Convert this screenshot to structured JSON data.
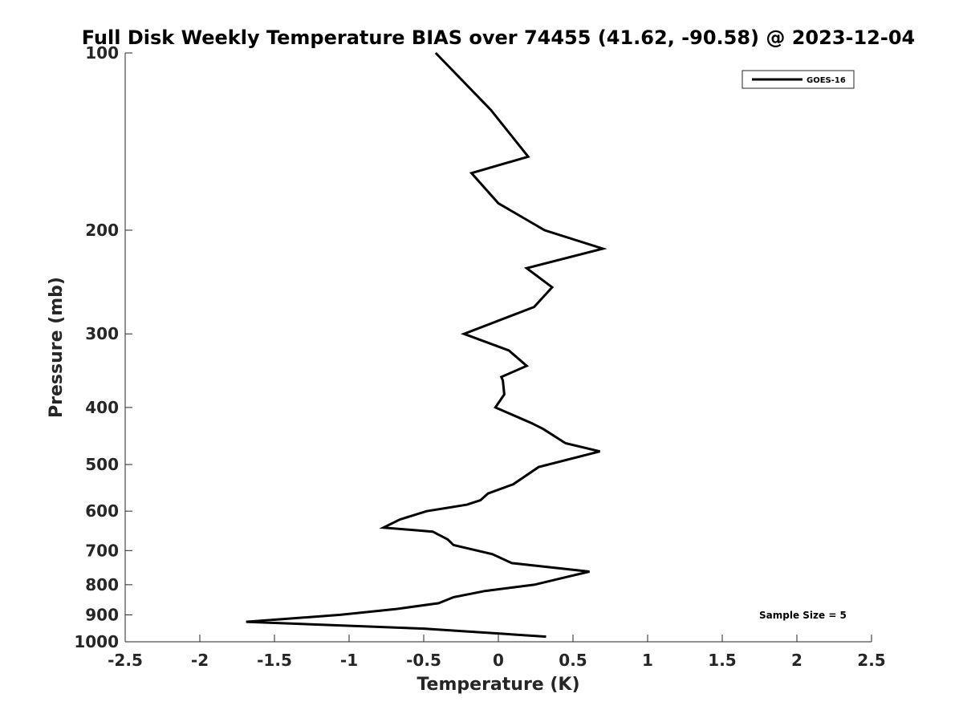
{
  "chart_data": {
    "type": "line",
    "title": "Full Disk Weekly Temperature BIAS over 74455 (41.62, -90.58) @ 2023-12-04",
    "xlabel": "Temperature (K)",
    "ylabel": "Pressure (mb)",
    "xlim": [
      -2.5,
      2.5
    ],
    "ylim": [
      100,
      1000
    ],
    "y_scale": "log",
    "y_reversed": true,
    "grid": false,
    "x_ticks": [
      "-2.5",
      "-2",
      "-1.5",
      "-1",
      "-0.5",
      "0",
      "0.5",
      "1",
      "1.5",
      "2",
      "2.5"
    ],
    "y_ticks": [
      "100",
      "200",
      "300",
      "400",
      "500",
      "600",
      "700",
      "800",
      "900",
      "1000"
    ],
    "legend": {
      "placement": "top-right",
      "entries": [
        "GOES-16"
      ]
    },
    "annotation": "Sample Size = 5",
    "series": [
      {
        "name": "GOES-16",
        "color": "#000000",
        "x": [
          -0.42,
          -0.05,
          0.2,
          -0.18,
          0.0,
          0.31,
          0.7,
          0.19,
          0.36,
          0.24,
          -0.23,
          0.07,
          0.19,
          0.02,
          0.03,
          0.04,
          -0.02,
          0.22,
          0.3,
          0.45,
          0.68,
          0.27,
          0.1,
          -0.07,
          -0.12,
          -0.21,
          -0.48,
          -0.66,
          -0.77,
          -0.44,
          -0.34,
          -0.3,
          -0.04,
          0.09,
          0.61,
          0.47,
          0.24,
          -0.09,
          -0.3,
          -0.4,
          -0.69,
          -1.06,
          -1.69,
          -0.5,
          0.32
        ],
        "y": [
          100,
          125,
          150,
          160,
          180,
          200,
          215,
          232,
          250,
          270,
          300,
          320,
          340,
          355,
          360,
          380,
          400,
          425,
          435,
          460,
          475,
          505,
          540,
          560,
          575,
          585,
          600,
          620,
          640,
          650,
          670,
          685,
          710,
          735,
          760,
          775,
          800,
          820,
          840,
          860,
          880,
          900,
          925,
          950,
          980
        ]
      }
    ]
  }
}
